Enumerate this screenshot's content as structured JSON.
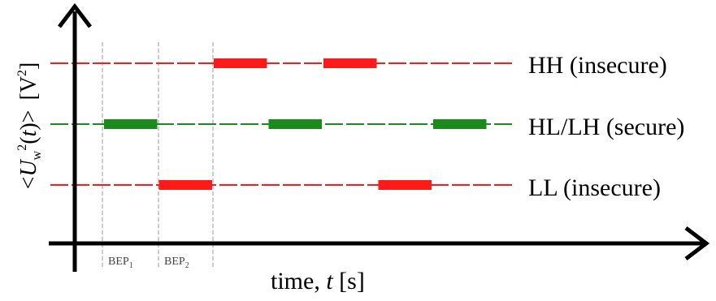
{
  "diagram": {
    "ylabel_parts": {
      "open": "<",
      "U": "U",
      "sub": "w",
      "sup": "2",
      "t_open": "(",
      "t": "t",
      "t_close": ")",
      "close": ">",
      "unit": "[V",
      "unit_sup": "2",
      "unit_close": "]"
    },
    "xlabel_parts": {
      "prefix": "time, ",
      "t": "t",
      "unit": " [s]"
    },
    "levels": [
      {
        "id": "hh",
        "label": "HH (insecure)",
        "color": "#ff1a1a",
        "active_segments": [
          3,
          5
        ]
      },
      {
        "id": "hl-lh",
        "label": "HL/LH (secure)",
        "color": "#1a8a1a",
        "active_segments": [
          1,
          4,
          7
        ]
      },
      {
        "id": "ll",
        "label": "LL (insecure)",
        "color": "#ff1a1a",
        "active_segments": [
          2,
          6
        ]
      }
    ],
    "periods": [
      {
        "label": "BEP",
        "sub": "1"
      },
      {
        "label": "BEP",
        "sub": "2"
      }
    ]
  }
}
